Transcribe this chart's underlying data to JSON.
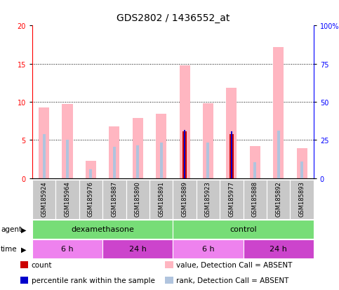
{
  "title": "GDS2802 / 1436552_at",
  "samples": [
    "GSM185924",
    "GSM185964",
    "GSM185976",
    "GSM185887",
    "GSM185890",
    "GSM185891",
    "GSM185889",
    "GSM185923",
    "GSM185977",
    "GSM185888",
    "GSM185892",
    "GSM185893"
  ],
  "value_absent": [
    9.3,
    9.7,
    2.3,
    6.8,
    7.9,
    8.4,
    14.8,
    9.8,
    11.8,
    4.2,
    17.2,
    3.9
  ],
  "rank_absent": [
    5.8,
    5.0,
    1.2,
    4.1,
    4.3,
    4.7,
    6.1,
    4.7,
    5.8,
    2.1,
    6.2,
    2.2
  ],
  "count": [
    0,
    0,
    0,
    0,
    0,
    0,
    6.1,
    0,
    5.8,
    0,
    0,
    0
  ],
  "percentile_rank": [
    0,
    0,
    0,
    0,
    0,
    0,
    6.3,
    0,
    6.1,
    0,
    0,
    0
  ],
  "has_count": [
    false,
    false,
    false,
    false,
    false,
    false,
    true,
    false,
    true,
    false,
    false,
    false
  ],
  "has_percentile": [
    false,
    false,
    false,
    false,
    false,
    false,
    true,
    false,
    true,
    false,
    false,
    false
  ],
  "agent_groups": [
    {
      "label": "dexamethasone",
      "start": 0,
      "end": 6
    },
    {
      "label": "control",
      "start": 6,
      "end": 12
    }
  ],
  "time_groups": [
    {
      "label": "6 h",
      "start": 0,
      "end": 3,
      "color": "#ee82ee"
    },
    {
      "label": "24 h",
      "start": 3,
      "end": 6,
      "color": "#cc44cc"
    },
    {
      "label": "6 h",
      "start": 6,
      "end": 9,
      "color": "#ee82ee"
    },
    {
      "label": "24 h",
      "start": 9,
      "end": 12,
      "color": "#cc44cc"
    }
  ],
  "ylim_left": [
    0,
    20
  ],
  "ylim_right": [
    0,
    100
  ],
  "yticks_left": [
    0,
    5,
    10,
    15,
    20
  ],
  "yticks_right": [
    0,
    25,
    50,
    75,
    100
  ],
  "ytick_labels_right": [
    "0",
    "25",
    "50",
    "75",
    "100%"
  ],
  "color_value_absent": "#ffb6c1",
  "color_rank_absent": "#b0c4de",
  "color_count": "#cc0000",
  "color_percentile": "#0000cc",
  "color_agent": "#77dd77",
  "color_sample_bg": "#c8c8c8",
  "plot_bg": "#ffffff",
  "legend_fontsize": 7.5,
  "tick_fontsize": 7,
  "title_fontsize": 10,
  "sample_fontsize": 6,
  "group_fontsize": 8
}
